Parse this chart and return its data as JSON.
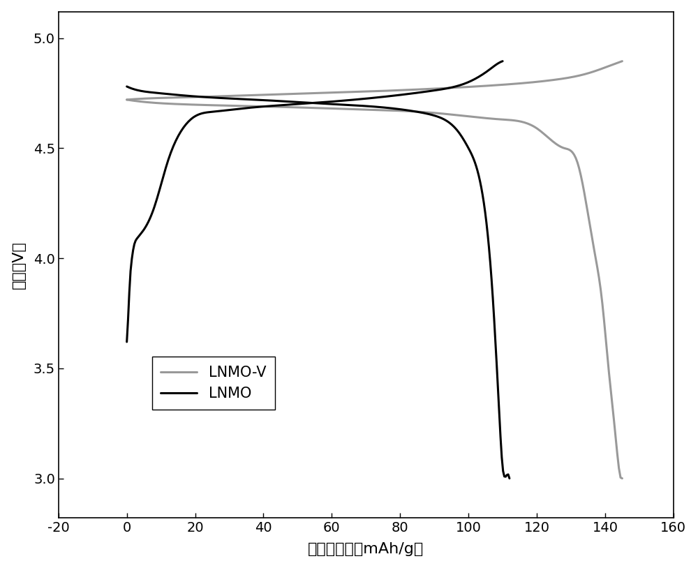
{
  "title": "",
  "xlabel": "放电比容量（mAh/g）",
  "ylabel": "电压（V）",
  "xlim": [
    -20,
    160
  ],
  "ylim": [
    2.82,
    5.12
  ],
  "xticks": [
    -20,
    0,
    20,
    40,
    60,
    80,
    100,
    120,
    140,
    160
  ],
  "yticks": [
    3.0,
    3.5,
    4.0,
    4.5,
    5.0
  ],
  "legend_lnmov": "LNMO-V",
  "legend_lnmo": "LNMO",
  "lnmov_color": "#999999",
  "lnmo_color": "#000000",
  "lw": 2.2,
  "bg_color": "#ffffff",
  "lnmo_v_charge_x": [
    0,
    5,
    15,
    30,
    50,
    70,
    90,
    110,
    125,
    135,
    142,
    145
  ],
  "lnmo_v_charge_y": [
    4.72,
    4.725,
    4.73,
    4.737,
    4.747,
    4.757,
    4.77,
    4.788,
    4.81,
    4.84,
    4.878,
    4.895
  ],
  "lnmo_v_discharge_x": [
    0,
    5,
    15,
    30,
    50,
    70,
    90,
    110,
    120,
    128,
    132,
    135,
    137,
    139,
    141,
    143,
    144,
    145
  ],
  "lnmo_v_discharge_y": [
    4.72,
    4.71,
    4.7,
    4.693,
    4.685,
    4.675,
    4.66,
    4.63,
    4.59,
    4.5,
    4.43,
    4.2,
    4.02,
    3.82,
    3.5,
    3.2,
    3.05,
    3.0
  ],
  "lnmo_charge_x": [
    0,
    0.3,
    0.6,
    1.0,
    1.5,
    2,
    3,
    5,
    8,
    12,
    16,
    20,
    25,
    35,
    50,
    70,
    90,
    100,
    106,
    109,
    110
  ],
  "lnmo_charge_y": [
    3.62,
    3.7,
    3.8,
    3.92,
    4.0,
    4.05,
    4.09,
    4.13,
    4.23,
    4.44,
    4.58,
    4.645,
    4.665,
    4.682,
    4.7,
    4.725,
    4.762,
    4.8,
    4.855,
    4.888,
    4.895
  ],
  "lnmo_discharge_x": [
    0,
    2,
    8,
    20,
    40,
    60,
    75,
    85,
    90,
    94,
    97,
    100,
    104,
    107,
    109,
    110,
    111,
    112
  ],
  "lnmo_discharge_y": [
    4.78,
    4.768,
    4.752,
    4.735,
    4.718,
    4.7,
    4.685,
    4.665,
    4.648,
    4.62,
    4.575,
    4.5,
    4.3,
    3.85,
    3.3,
    3.05,
    3.01,
    3.0
  ]
}
